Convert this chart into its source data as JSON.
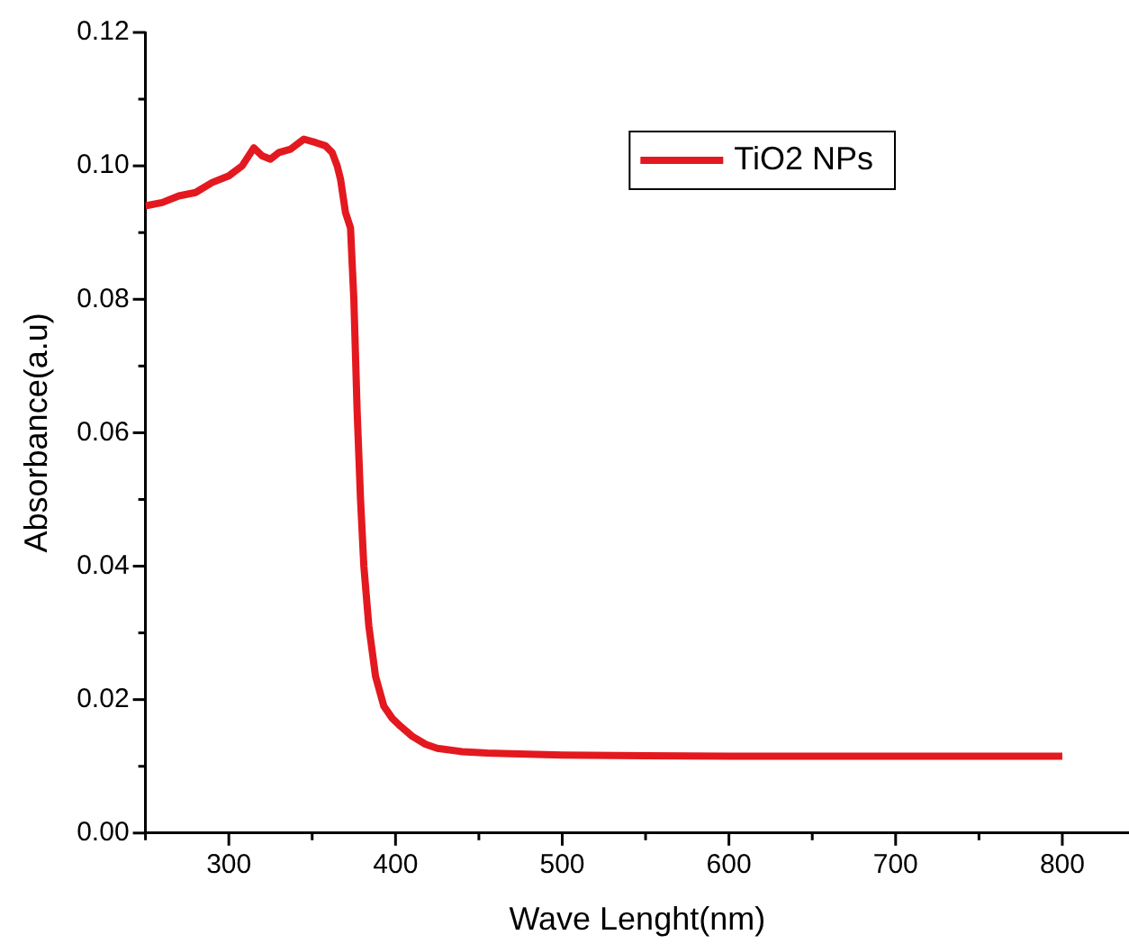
{
  "chart_data": {
    "type": "line",
    "xlabel": "Wave Lenght(nm)",
    "ylabel": "Absorbance(a.u)",
    "series": [
      {
        "name": "TiO2 NPs",
        "color": "#e3191f",
        "x": [
          250,
          260,
          270,
          280,
          290,
          300,
          308,
          315,
          320,
          325,
          330,
          337,
          345,
          352,
          358,
          362,
          365,
          367,
          370,
          373,
          375,
          377,
          379,
          381,
          384,
          388,
          393,
          398,
          403,
          410,
          418,
          425,
          440,
          455,
          469,
          500,
          550,
          600,
          650,
          700,
          750,
          800
        ],
        "values": [
          0.094,
          0.0945,
          0.0955,
          0.096,
          0.0975,
          0.0985,
          0.1,
          0.1027,
          0.1015,
          0.101,
          0.102,
          0.1025,
          0.104,
          0.1035,
          0.103,
          0.102,
          0.1,
          0.098,
          0.093,
          0.0907,
          0.08,
          0.063,
          0.05,
          0.04,
          0.031,
          0.0235,
          0.019,
          0.0172,
          0.016,
          0.0145,
          0.0133,
          0.0127,
          0.0122,
          0.012,
          0.0119,
          0.0117,
          0.0116,
          0.0115,
          0.0115,
          0.0115,
          0.0115,
          0.0115
        ]
      }
    ],
    "xlim": [
      250,
      840
    ],
    "ylim": [
      0,
      0.12
    ],
    "xticks": [
      {
        "value": 250,
        "label": null
      },
      300,
      {
        "value": 350,
        "label": null
      },
      400,
      {
        "value": 450,
        "label": null
      },
      500,
      {
        "value": 550,
        "label": null
      },
      600,
      {
        "value": 650,
        "label": null
      },
      700,
      {
        "value": 750,
        "label": null
      },
      800
    ],
    "yticks": [
      {
        "value": 0,
        "label": "0.00"
      },
      {
        "value": 0.01,
        "label": null
      },
      {
        "value": 0.02,
        "label": "0.02"
      },
      {
        "value": 0.03,
        "label": null
      },
      {
        "value": 0.04,
        "label": "0.04"
      },
      {
        "value": 0.05,
        "label": null
      },
      {
        "value": 0.06,
        "label": "0.06"
      },
      {
        "value": 0.07,
        "label": null
      },
      {
        "value": 0.08,
        "label": "0.08"
      },
      {
        "value": 0.09,
        "label": null
      },
      {
        "value": 0.1,
        "label": "0.10"
      },
      {
        "value": 0.11,
        "label": null
      },
      {
        "value": 0.12,
        "label": "0.12"
      }
    ],
    "grid": false,
    "legend": "top right",
    "marker": "none",
    "line_style": "solid"
  }
}
